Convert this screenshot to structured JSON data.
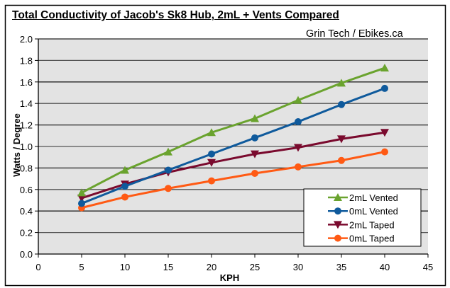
{
  "chart_data": {
    "type": "line",
    "title": "Total Conductivity of Jacob's Sk8 Hub, 2mL + Vents Compared",
    "subtitle": "Grin Tech / Ebikes.ca",
    "xlabel": "KPH",
    "ylabel": "Watts / Degree",
    "xlim": [
      0,
      45
    ],
    "ylim": [
      0,
      2.0
    ],
    "x_ticks": [
      "0",
      "5",
      "10",
      "15",
      "20",
      "25",
      "30",
      "35",
      "40",
      "45"
    ],
    "y_ticks": [
      "0.0",
      "0.2",
      "0.4",
      "0.6",
      "0.8",
      "1.0",
      "1.2",
      "1.4",
      "1.6",
      "1.8",
      "2.0"
    ],
    "grid": true,
    "legend_position": "bottom-right",
    "x": [
      5,
      10,
      15,
      20,
      25,
      30,
      35,
      40
    ],
    "series": [
      {
        "name": "2mL Vented",
        "color": "#6aa32e",
        "marker": "triangle-up",
        "values": [
          0.57,
          0.78,
          0.95,
          1.13,
          1.26,
          1.43,
          1.59,
          1.73
        ]
      },
      {
        "name": "0mL Vented",
        "color": "#0f5a9c",
        "marker": "circle",
        "values": [
          0.47,
          0.63,
          0.78,
          0.93,
          1.08,
          1.23,
          1.39,
          1.54
        ]
      },
      {
        "name": "2mL Taped",
        "color": "#7a0a2e",
        "marker": "triangle-down",
        "values": [
          0.52,
          0.65,
          0.76,
          0.85,
          0.93,
          0.99,
          1.07,
          1.13
        ]
      },
      {
        "name": "0mL Taped",
        "color": "#ff5a14",
        "marker": "circle",
        "values": [
          0.43,
          0.53,
          0.61,
          0.68,
          0.75,
          0.81,
          0.87,
          0.95
        ]
      }
    ]
  }
}
